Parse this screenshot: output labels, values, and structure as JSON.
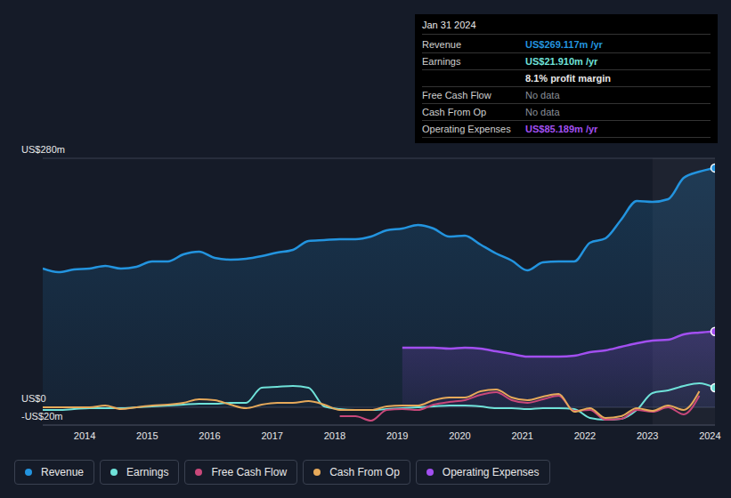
{
  "chart_data": {
    "type": "line",
    "x": [
      2013.33,
      2013.58,
      2013.83,
      2014.08,
      2014.33,
      2014.58,
      2014.83,
      2015.08,
      2015.33,
      2015.58,
      2015.83,
      2016.08,
      2016.33,
      2016.58,
      2016.83,
      2017.08,
      2017.33,
      2017.58,
      2017.83,
      2018.08,
      2018.33,
      2018.58,
      2018.83,
      2019.08,
      2019.33,
      2019.58,
      2019.83,
      2020.08,
      2020.33,
      2020.58,
      2020.83,
      2021.08,
      2021.33,
      2021.58,
      2021.83,
      2022.08,
      2022.33,
      2022.58,
      2022.83,
      2023.08,
      2023.33,
      2023.58,
      2023.83,
      2024.08
    ],
    "xlim": [
      2013.33,
      2024.08
    ],
    "xticks": [
      2014,
      2015,
      2016,
      2017,
      2018,
      2019,
      2020,
      2021,
      2022,
      2023,
      2024
    ],
    "ylim": [
      -20,
      280
    ],
    "yticks": [
      {
        "value": -20,
        "label": "-US$20m"
      },
      {
        "value": 0,
        "label": "US$0"
      },
      {
        "value": 280,
        "label": "US$280m"
      }
    ],
    "grid": true,
    "legend": "bottom",
    "series": [
      {
        "name": "Revenue",
        "type": "area",
        "color": "#2394df",
        "values": [
          156,
          152,
          155,
          156,
          159,
          156,
          158,
          164,
          164,
          172,
          175,
          168,
          166,
          167,
          170,
          174,
          177,
          187,
          188,
          189,
          189,
          192,
          199,
          201,
          205,
          201,
          192,
          193,
          183,
          173,
          165,
          154,
          163,
          164,
          164,
          185,
          190,
          211,
          232,
          231,
          234,
          258,
          265,
          269.117
        ]
      },
      {
        "name": "Earnings",
        "type": "line",
        "color": "#6fe2d9",
        "values": [
          -3,
          -3,
          -2,
          -1,
          -1,
          -1,
          0,
          1,
          2,
          3,
          4,
          4,
          5,
          5,
          22,
          23,
          24,
          22,
          1,
          -2,
          -3,
          -3,
          -2,
          -1,
          0,
          1,
          2,
          2,
          1,
          -1,
          -1,
          -2,
          -1,
          -1,
          -2,
          -12,
          -14,
          -13,
          -3,
          16,
          19,
          24,
          27,
          21.91
        ]
      },
      {
        "name": "Free Cash Flow",
        "type": "line",
        "color": "#c9487a",
        "values": [
          null,
          null,
          null,
          null,
          null,
          null,
          null,
          null,
          null,
          null,
          null,
          null,
          null,
          null,
          null,
          null,
          null,
          null,
          null,
          -10,
          -10,
          -15,
          -3,
          -2,
          -3,
          3,
          6,
          8,
          14,
          17,
          8,
          5,
          9,
          13,
          -4,
          -3,
          -14,
          -13,
          -3,
          -5,
          0,
          -8,
          13,
          null
        ]
      },
      {
        "name": "Cash From Op",
        "type": "line",
        "color": "#e6a95a",
        "values": [
          0,
          0,
          0,
          0,
          2,
          -2,
          0,
          2,
          3,
          5,
          9,
          8,
          3,
          -1,
          3,
          5,
          5,
          7,
          3,
          -3,
          -3,
          -3,
          1,
          2,
          2,
          8,
          11,
          11,
          18,
          20,
          11,
          8,
          12,
          15,
          -5,
          -1,
          -12,
          -10,
          -1,
          -4,
          2,
          -3,
          18,
          null
        ]
      },
      {
        "name": "Operating Expenses",
        "type": "area",
        "color": "#a24ff0",
        "values": [
          null,
          null,
          null,
          null,
          null,
          null,
          null,
          null,
          null,
          null,
          null,
          null,
          null,
          null,
          null,
          null,
          null,
          null,
          null,
          null,
          null,
          null,
          null,
          67,
          67,
          67,
          66,
          67,
          66,
          63,
          60,
          57,
          57,
          57,
          58,
          62,
          64,
          68,
          72,
          75,
          76,
          82,
          84,
          85.189
        ]
      }
    ],
    "tooltip": {
      "title": "Jan 31 2024",
      "rows": [
        {
          "label": "Revenue",
          "value": "US$269.117m /yr"
        },
        {
          "label": "Earnings",
          "value": "US$21.910m /yr"
        },
        {
          "value": "8.1% profit margin"
        },
        {
          "label": "Free Cash Flow",
          "value": "No data"
        },
        {
          "label": "Cash From Op",
          "value": "No data"
        },
        {
          "label": "Operating Expenses",
          "value": "US$85.189m /yr"
        }
      ]
    }
  }
}
